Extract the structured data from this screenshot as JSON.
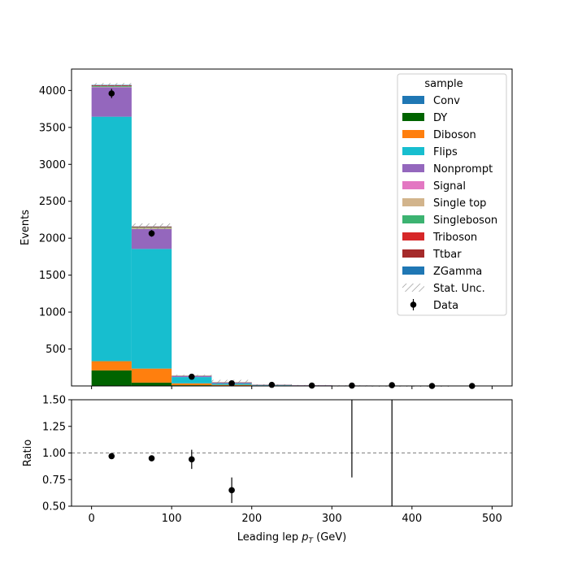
{
  "chart_data": {
    "type": "bar",
    "stacked": true,
    "bin_edges": [
      0,
      50,
      100,
      150,
      200,
      250,
      300,
      350,
      400,
      450,
      500
    ],
    "xlim": [
      -25,
      525
    ],
    "xlabel_main": "Leading lep ",
    "xlabel_math": "p",
    "xlabel_sub": "T",
    "xlabel_unit": " (GeV)",
    "xticks": [
      0,
      100,
      200,
      300,
      400,
      500
    ],
    "xtick_labels": [
      "0",
      "100",
      "200",
      "300",
      "400",
      "500"
    ],
    "main": {
      "ylabel": "Events",
      "ylim": [
        0,
        4290
      ],
      "yticks": [
        500,
        1000,
        1500,
        2000,
        2500,
        3000,
        3500,
        4000
      ],
      "ytick_labels": [
        "500",
        "1000",
        "1500",
        "2000",
        "2500",
        "3000",
        "3500",
        "4000"
      ]
    },
    "series": [
      {
        "name": "Conv",
        "color": "#1f77b4",
        "values": [
          0,
          0,
          0,
          0,
          0,
          0,
          0,
          0,
          0,
          0
        ]
      },
      {
        "name": "DY",
        "color": "#006400",
        "values": [
          210,
          45,
          10,
          3,
          1,
          0,
          0,
          0,
          0,
          0
        ]
      },
      {
        "name": "Diboson",
        "color": "#ff7f0e",
        "values": [
          125,
          190,
          25,
          12,
          5,
          3,
          2,
          1,
          1,
          0
        ]
      },
      {
        "name": "Flips",
        "color": "#17becf",
        "values": [
          3310,
          1620,
          85,
          18,
          4,
          2,
          1,
          0,
          0,
          0
        ]
      },
      {
        "name": "Nonprompt",
        "color": "#9467bd",
        "values": [
          400,
          270,
          15,
          12,
          5,
          4,
          3,
          2,
          1,
          0
        ]
      },
      {
        "name": "Signal",
        "color": "#e377c2",
        "values": [
          0,
          0,
          0,
          0,
          0,
          0,
          0,
          0,
          0,
          0
        ]
      },
      {
        "name": "Single top",
        "color": "#d2b48c",
        "values": [
          5,
          15,
          3,
          3,
          1,
          1,
          0,
          0,
          0,
          0
        ]
      },
      {
        "name": "Singleboson",
        "color": "#3cb371",
        "values": [
          10,
          8,
          2,
          2,
          1,
          0,
          0,
          0,
          0,
          0
        ]
      },
      {
        "name": "Triboson",
        "color": "#d62728",
        "values": [
          0,
          0,
          0,
          0,
          0,
          0,
          0,
          0,
          0,
          0
        ]
      },
      {
        "name": "Ttbar",
        "color": "#a52a2a",
        "values": [
          10,
          10,
          2,
          2,
          1,
          0,
          0,
          0,
          0,
          0
        ]
      },
      {
        "name": "ZGamma",
        "color": "#1f77b4",
        "values": [
          5,
          2,
          0,
          0,
          0,
          0,
          0,
          0,
          0,
          0
        ]
      }
    ],
    "stat_unc": {
      "name": "Stat. Unc.",
      "values": [
        25,
        40,
        10,
        30,
        5,
        3,
        3,
        3,
        3,
        2
      ]
    },
    "data": {
      "name": "Data",
      "x": [
        25,
        75,
        125,
        175,
        225,
        275,
        325,
        375,
        425,
        475
      ],
      "y": [
        3960,
        2065,
        125,
        35,
        15,
        5,
        5,
        10,
        0,
        0
      ],
      "yerr": [
        63,
        45,
        11,
        6,
        4,
        2,
        2,
        3,
        0,
        0
      ]
    },
    "ratio": {
      "ylabel": "Ratio",
      "ylim": [
        0.5,
        1.5
      ],
      "yticks": [
        0.5,
        0.75,
        1.0,
        1.25,
        1.5
      ],
      "ytick_labels": [
        "0.50",
        "0.75",
        "1.00",
        "1.25",
        "1.50"
      ],
      "reference": 1.0,
      "points": [
        {
          "x": 25,
          "y": 0.97,
          "err": 0.0
        },
        {
          "x": 75,
          "y": 0.95,
          "err": 0.0
        },
        {
          "x": 125,
          "y": 0.94,
          "err": 0.09
        },
        {
          "x": 175,
          "y": 0.65,
          "err": 0.12
        }
      ],
      "lines": [
        {
          "x": 325,
          "y_low": 0.77,
          "y_high": 1.5
        },
        {
          "x": 375,
          "y_low": 0.5,
          "y_high": 1.5
        }
      ]
    },
    "legend": {
      "title": "sample",
      "placement": "top-right"
    },
    "colors": {
      "hatch": "#888888",
      "reference_line": "#808080",
      "data": "#000000"
    }
  }
}
